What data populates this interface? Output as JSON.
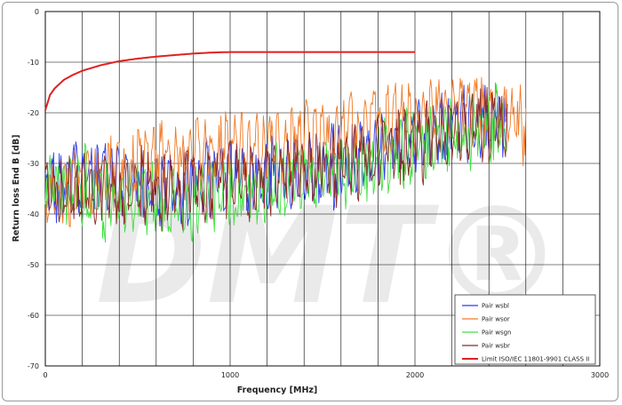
{
  "chart_data": {
    "type": "line",
    "title": "",
    "xlabel": "Frequency [MHz]",
    "ylabel": "Return loss End B [dB]",
    "xlim": [
      0,
      3000
    ],
    "ylim": [
      -70,
      0
    ],
    "x_ticks": [
      "0",
      "1000",
      "2000",
      "3000"
    ],
    "y_ticks": [
      "0",
      "-10",
      "-20",
      "-30",
      "-40",
      "-50",
      "-60",
      "-70"
    ],
    "grid": true,
    "legend_position": "bottom-right",
    "watermark": "DMT®",
    "series": [
      {
        "name": "Pair wsbl",
        "color": "#2a3cf0",
        "x": [
          0,
          100,
          200,
          300,
          400,
          500,
          600,
          700,
          800,
          900,
          1000,
          1100,
          1200,
          1300,
          1400,
          1500,
          1600,
          1700,
          1800,
          1900,
          2000,
          2100,
          2200,
          2300,
          2400,
          2500
        ],
        "y": [
          -33,
          -34,
          -32,
          -33,
          -34,
          -33,
          -35,
          -35,
          -34,
          -33,
          -32,
          -34,
          -33,
          -31,
          -32,
          -30,
          -31,
          -29,
          -28,
          -27,
          -25,
          -24,
          -23,
          -23,
          -22,
          -22
        ]
      },
      {
        "name": "Pair wsor",
        "color": "#f07a26",
        "x": [
          0,
          100,
          200,
          300,
          400,
          500,
          600,
          700,
          800,
          900,
          1000,
          1100,
          1200,
          1300,
          1400,
          1500,
          1600,
          1700,
          1800,
          1900,
          2000,
          2100,
          2200,
          2300,
          2400,
          2500,
          2600
        ],
        "y": [
          -35,
          -36,
          -34,
          -32,
          -31,
          -30,
          -29,
          -28,
          -28,
          -27,
          -27,
          -26,
          -26,
          -26,
          -25,
          -25,
          -24,
          -23,
          -22,
          -21,
          -21,
          -20,
          -20,
          -19,
          -19,
          -19,
          -24
        ]
      },
      {
        "name": "Pair wsgn",
        "color": "#3ee03e",
        "x": [
          0,
          100,
          200,
          300,
          400,
          500,
          600,
          700,
          800,
          900,
          1000,
          1100,
          1200,
          1300,
          1400,
          1500,
          1600,
          1700,
          1800,
          1900,
          2000,
          2100,
          2200,
          2300,
          2400,
          2500
        ],
        "y": [
          -34,
          -36,
          -34,
          -37,
          -38,
          -36,
          -38,
          -37,
          -38,
          -36,
          -35,
          -36,
          -35,
          -34,
          -33,
          -32,
          -32,
          -31,
          -30,
          -28,
          -26,
          -26,
          -25,
          -24,
          -23,
          -22
        ]
      },
      {
        "name": "Pair wsbr",
        "color": "#8b2a2a",
        "x": [
          0,
          100,
          200,
          300,
          400,
          500,
          600,
          700,
          800,
          900,
          1000,
          1100,
          1200,
          1300,
          1400,
          1500,
          1600,
          1700,
          1800,
          1900,
          2000,
          2100,
          2200,
          2300,
          2400,
          2500
        ],
        "y": [
          -34,
          -35,
          -34,
          -35,
          -36,
          -35,
          -36,
          -35,
          -34,
          -34,
          -33,
          -33,
          -33,
          -32,
          -31,
          -31,
          -30,
          -29,
          -28,
          -27,
          -26,
          -25,
          -24,
          -23,
          -22,
          -22
        ]
      },
      {
        "name": "Limit ISO/IEC 11801-9901 CLASS II",
        "color": "#e02020",
        "x": [
          0,
          25,
          50,
          100,
          150,
          200,
          300,
          400,
          500,
          600,
          700,
          800,
          900,
          1000,
          1500,
          2000
        ],
        "y": [
          -19.5,
          -16.5,
          -15.2,
          -13.5,
          -12.5,
          -11.7,
          -10.6,
          -9.8,
          -9.3,
          -8.9,
          -8.6,
          -8.3,
          -8.1,
          -8,
          -8,
          -8
        ]
      }
    ]
  }
}
